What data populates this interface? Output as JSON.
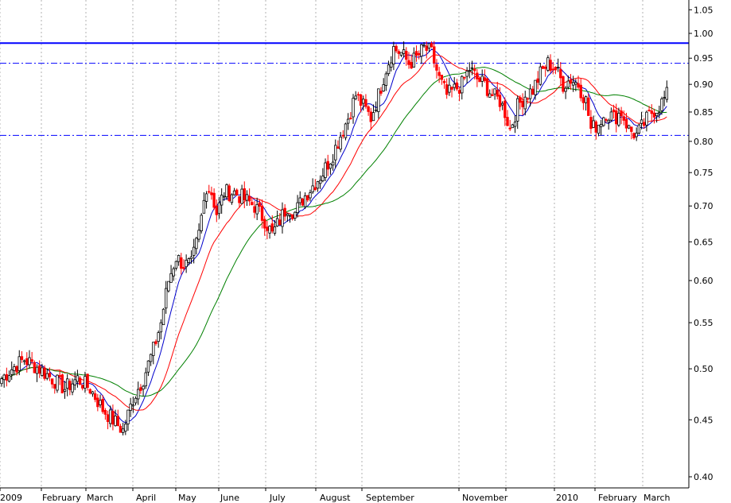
{
  "chart_data": {
    "type": "candlestick",
    "title": "",
    "xlabel": "",
    "ylabel": "",
    "y_scale": "log",
    "ylim": [
      0.4,
      1.05
    ],
    "y_ticks": [
      "0.40",
      "0.45",
      "0.50",
      "0.55",
      "0.60",
      "0.65",
      "0.70",
      "0.75",
      "0.80",
      "0.85",
      "0.90",
      "0.95",
      "1.00",
      "1.05"
    ],
    "x_labels": [
      "2009",
      "February",
      "March",
      "April",
      "May",
      "June",
      "July",
      "August",
      "September",
      "November",
      "2010",
      "February",
      "March"
    ],
    "grid": "vertical dotted",
    "colors": {
      "up": "#000000",
      "down": "#ff0000",
      "ma_short": "#0000cc",
      "ma_medium": "#ff0000",
      "ma_long": "#008000",
      "resistance": "#0000ff"
    },
    "reference_lines": [
      {
        "value": 0.98,
        "style": "solid"
      },
      {
        "value": 0.94,
        "style": "dash-dot"
      },
      {
        "value": 0.81,
        "style": "dash-dot"
      }
    ],
    "price_anchors": [
      [
        0,
        0.49
      ],
      [
        4,
        0.5
      ],
      [
        9,
        0.51
      ],
      [
        15,
        0.5
      ],
      [
        20,
        0.49
      ],
      [
        25,
        0.48
      ],
      [
        30,
        0.49
      ],
      [
        35,
        0.48
      ],
      [
        40,
        0.46
      ],
      [
        44,
        0.45
      ],
      [
        48,
        0.44
      ],
      [
        52,
        0.47
      ],
      [
        56,
        0.49
      ],
      [
        60,
        0.52
      ],
      [
        63,
        0.55
      ],
      [
        66,
        0.6
      ],
      [
        69,
        0.63
      ],
      [
        72,
        0.62
      ],
      [
        75,
        0.62
      ],
      [
        78,
        0.66
      ],
      [
        81,
        0.73
      ],
      [
        83,
        0.72
      ],
      [
        85,
        0.69
      ],
      [
        88,
        0.72
      ],
      [
        92,
        0.72
      ],
      [
        96,
        0.71
      ],
      [
        100,
        0.7
      ],
      [
        104,
        0.68
      ],
      [
        107,
        0.66
      ],
      [
        110,
        0.68
      ],
      [
        113,
        0.7
      ],
      [
        116,
        0.69
      ],
      [
        119,
        0.71
      ],
      [
        123,
        0.73
      ],
      [
        127,
        0.75
      ],
      [
        131,
        0.78
      ],
      [
        134,
        0.81
      ],
      [
        137,
        0.84
      ],
      [
        140,
        0.88
      ],
      [
        143,
        0.86
      ],
      [
        146,
        0.84
      ],
      [
        149,
        0.88
      ],
      [
        152,
        0.93
      ],
      [
        155,
        0.97
      ],
      [
        158,
        0.96
      ],
      [
        161,
        0.94
      ],
      [
        164,
        0.95
      ],
      [
        167,
        0.97
      ],
      [
        170,
        0.96
      ],
      [
        173,
        0.91
      ],
      [
        176,
        0.88
      ],
      [
        179,
        0.89
      ],
      [
        182,
        0.9
      ],
      [
        185,
        0.93
      ],
      [
        188,
        0.91
      ],
      [
        191,
        0.9
      ],
      [
        194,
        0.88
      ],
      [
        197,
        0.87
      ],
      [
        199,
        0.85
      ],
      [
        201,
        0.82
      ],
      [
        204,
        0.86
      ],
      [
        207,
        0.88
      ],
      [
        210,
        0.89
      ],
      [
        213,
        0.92
      ],
      [
        216,
        0.94
      ],
      [
        219,
        0.93
      ],
      [
        222,
        0.9
      ],
      [
        225,
        0.91
      ],
      [
        228,
        0.9
      ],
      [
        231,
        0.87
      ],
      [
        233,
        0.82
      ],
      [
        236,
        0.83
      ],
      [
        239,
        0.85
      ],
      [
        242,
        0.84
      ],
      [
        245,
        0.85
      ],
      [
        248,
        0.82
      ],
      [
        251,
        0.81
      ],
      [
        254,
        0.83
      ],
      [
        257,
        0.85
      ],
      [
        260,
        0.86
      ],
      [
        263,
        0.88
      ]
    ]
  }
}
